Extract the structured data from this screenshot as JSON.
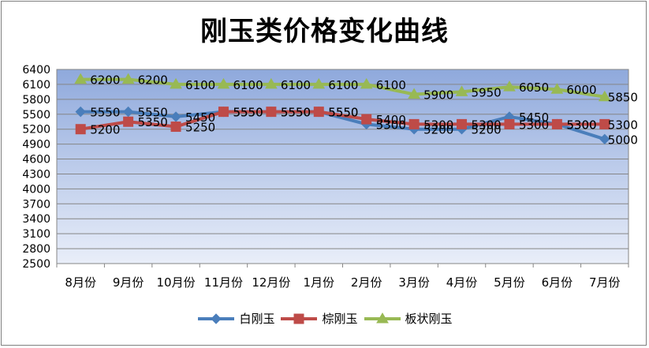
{
  "chart_data": {
    "type": "line",
    "title": "刚玉类价格变化曲线",
    "categories": [
      "8月份",
      "9月份",
      "10月份",
      "11月份",
      "12月份",
      "1月份",
      "2月份",
      "3月份",
      "4月份",
      "5月份",
      "6月份",
      "7月份"
    ],
    "ylim": [
      2500,
      6400
    ],
    "yticks": [
      2500,
      2800,
      3100,
      3400,
      3700,
      4000,
      4300,
      4600,
      4900,
      5200,
      5500,
      5800,
      6100,
      6400
    ],
    "grid": true,
    "legend_position": "bottom",
    "series": [
      {
        "name": "白刚玉",
        "color": "#4a7ebb",
        "marker": "diamond",
        "values": [
          5550,
          5550,
          5450,
          5550,
          5550,
          5550,
          5300,
          5200,
          5200,
          5450,
          5300,
          5000
        ]
      },
      {
        "name": "棕刚玉",
        "color": "#be4b48",
        "marker": "square",
        "values": [
          5200,
          5350,
          5250,
          5550,
          5550,
          5550,
          5400,
          5300,
          5300,
          5300,
          5300,
          5300
        ]
      },
      {
        "name": "板状刚玉",
        "color": "#98b954",
        "marker": "triangle",
        "values": [
          6200,
          6200,
          6100,
          6100,
          6100,
          6100,
          6100,
          5900,
          5950,
          6050,
          6000,
          5850
        ]
      }
    ]
  }
}
